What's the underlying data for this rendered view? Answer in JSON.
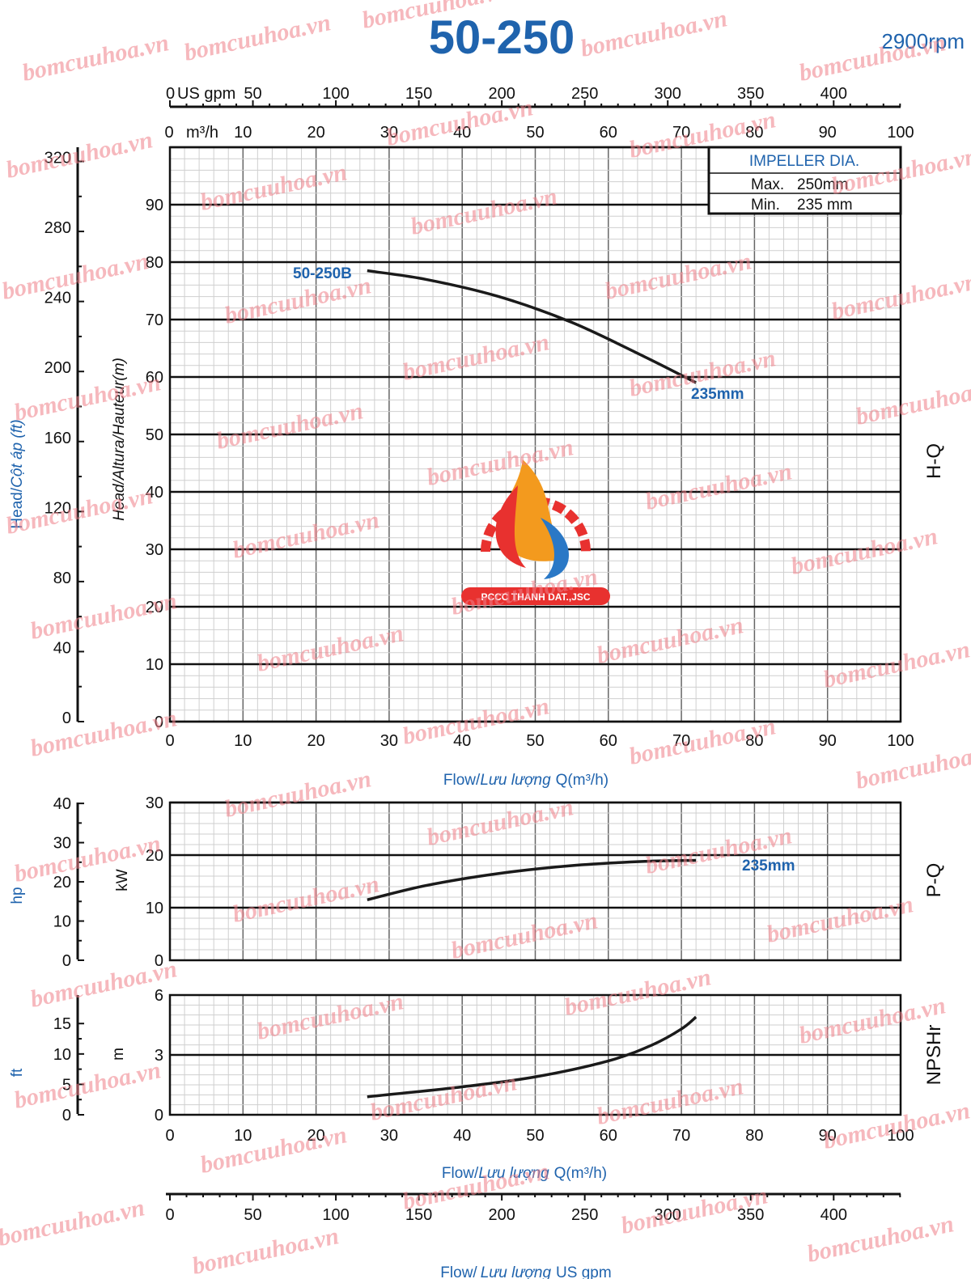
{
  "header": {
    "model": "50-250",
    "speed": "2900rpm"
  },
  "impeller": {
    "title": "IMPELLER DIA.",
    "max_label": "Max.",
    "max_value": "250mm",
    "min_label": "Min.",
    "min_value": "235 mm"
  },
  "axes": {
    "top_us_gpm_label": "US gpm",
    "top_us_gpm_zero": "0",
    "top_us_gpm_ticks": [
      "50",
      "100",
      "150",
      "200",
      "250",
      "300",
      "350",
      "400"
    ],
    "top_m3h_label": "m³/h",
    "m3h_ticks": [
      "0",
      "10",
      "20",
      "30",
      "40",
      "50",
      "60",
      "70",
      "80",
      "90",
      "100"
    ],
    "head_m_ticks": [
      "0",
      "10",
      "20",
      "30",
      "40",
      "50",
      "60",
      "70",
      "80",
      "90"
    ],
    "head_ft_ticks": [
      "0",
      "40",
      "80",
      "120",
      "160",
      "200",
      "240",
      "280",
      "320"
    ],
    "head_m_label": "Head/Altura/Hauteur(m)",
    "head_ft_label_a": "Head/",
    "head_ft_label_b": "Cột áp (ft)",
    "flow_label_a": "Flow/",
    "flow_label_b": "Lưu lượng",
    "flow_label_c": "Q(m³/h)",
    "kw_ticks": [
      "0",
      "10",
      "20",
      "30"
    ],
    "hp_ticks": [
      "0",
      "10",
      "20",
      "30",
      "40"
    ],
    "kw_label": "kW",
    "hp_label": "hp",
    "npsh_m_ticks": [
      "0",
      "3",
      "6"
    ],
    "npsh_ft_ticks": [
      "0",
      "5",
      "10",
      "15"
    ],
    "npsh_m_label": "m",
    "npsh_ft_label": "ft",
    "bottom_gpm_ticks": [
      "0",
      "50",
      "100",
      "150",
      "200",
      "250",
      "300",
      "350",
      "400"
    ],
    "bottom_flow_label_a": "Flow/",
    "bottom_flow_label_b": "Lưu lượng",
    "bottom_flow_label_c": "US gpm"
  },
  "panels": {
    "hq": "H-Q",
    "pq": "P-Q",
    "npsh": "NPSHr"
  },
  "chart_data": [
    {
      "type": "line",
      "panel": "H-Q",
      "x_unit": "m³/h",
      "y_unit": "m",
      "xlim": [
        0,
        100
      ],
      "ylim": [
        0,
        100
      ],
      "series": [
        {
          "name": "50-250B",
          "label_end": "235mm",
          "x": [
            27,
            35,
            45,
            55,
            65,
            72
          ],
          "y": [
            78.5,
            77,
            74,
            69.5,
            63.5,
            59
          ]
        }
      ]
    },
    {
      "type": "line",
      "panel": "P-Q",
      "x_unit": "m³/h",
      "y_unit": "kW",
      "xlim": [
        0,
        100
      ],
      "ylim": [
        0,
        30
      ],
      "series": [
        {
          "name": "235mm",
          "x": [
            27,
            35,
            45,
            55,
            65,
            72
          ],
          "y": [
            11.5,
            14.2,
            16.5,
            18.0,
            18.8,
            19.0
          ]
        }
      ]
    },
    {
      "type": "line",
      "panel": "NPSHr",
      "x_unit": "m³/h",
      "y_unit": "m",
      "xlim": [
        0,
        100
      ],
      "ylim": [
        0,
        6
      ],
      "series": [
        {
          "x": [
            27,
            40,
            50,
            60,
            66,
            70,
            72
          ],
          "y": [
            0.9,
            1.4,
            1.9,
            2.7,
            3.5,
            4.3,
            4.9
          ]
        }
      ]
    }
  ],
  "logo": {
    "text": "PCCC THANH DAT.,JSC"
  },
  "watermark": "bomcuuhoa.vn",
  "colors": {
    "brand_blue": "#1f63ad",
    "watermark": "#ef7f88",
    "logo_red": "#e8312f",
    "logo_orange": "#f39a1e",
    "logo_blue": "#2a78c6"
  }
}
